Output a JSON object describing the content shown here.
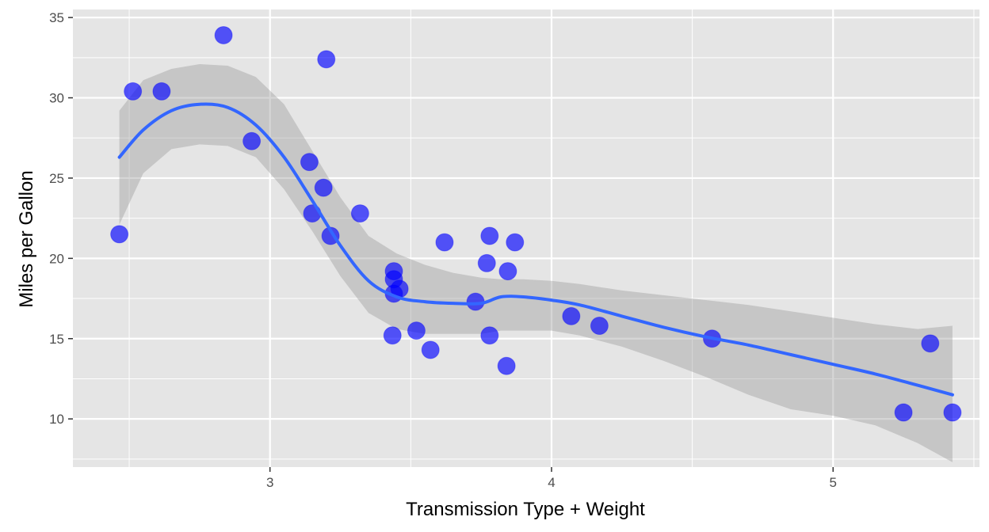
{
  "chart_data": {
    "type": "scatter",
    "xlabel": "Transmission Type + Weight",
    "ylabel": "Miles per Gallon",
    "xlim": [
      2.3,
      5.52
    ],
    "ylim": [
      7.0,
      35.5
    ],
    "x_ticks": [
      3,
      4,
      5
    ],
    "x_tick_labels": [
      "3",
      "4",
      "5"
    ],
    "y_ticks": [
      10,
      15,
      20,
      25,
      30,
      35
    ],
    "y_tick_labels": [
      "10",
      "15",
      "20",
      "25",
      "30",
      "35"
    ],
    "grid": true,
    "legend": "none",
    "points": [
      {
        "x": 2.465,
        "y": 21.5
      },
      {
        "x": 2.513,
        "y": 30.4
      },
      {
        "x": 2.615,
        "y": 30.4
      },
      {
        "x": 2.835,
        "y": 33.9
      },
      {
        "x": 2.935,
        "y": 27.3
      },
      {
        "x": 3.14,
        "y": 26.0
      },
      {
        "x": 3.15,
        "y": 22.8
      },
      {
        "x": 3.19,
        "y": 24.4
      },
      {
        "x": 3.2,
        "y": 32.4
      },
      {
        "x": 3.215,
        "y": 21.4
      },
      {
        "x": 3.32,
        "y": 22.8
      },
      {
        "x": 3.435,
        "y": 15.2
      },
      {
        "x": 3.44,
        "y": 19.2
      },
      {
        "x": 3.44,
        "y": 18.7
      },
      {
        "x": 3.44,
        "y": 17.8
      },
      {
        "x": 3.46,
        "y": 18.1
      },
      {
        "x": 3.52,
        "y": 15.5
      },
      {
        "x": 3.57,
        "y": 14.3
      },
      {
        "x": 3.62,
        "y": 21.0
      },
      {
        "x": 3.73,
        "y": 17.3
      },
      {
        "x": 3.77,
        "y": 19.7
      },
      {
        "x": 3.78,
        "y": 21.4
      },
      {
        "x": 3.78,
        "y": 15.2
      },
      {
        "x": 3.84,
        "y": 13.3
      },
      {
        "x": 3.845,
        "y": 19.2
      },
      {
        "x": 3.87,
        "y": 21.0
      },
      {
        "x": 4.07,
        "y": 16.4
      },
      {
        "x": 4.17,
        "y": 15.8
      },
      {
        "x": 4.57,
        "y": 15.0
      },
      {
        "x": 5.25,
        "y": 10.4
      },
      {
        "x": 5.345,
        "y": 14.7
      },
      {
        "x": 5.424,
        "y": 10.4
      }
    ],
    "smooth": {
      "x": [
        2.465,
        2.55,
        2.65,
        2.75,
        2.85,
        2.95,
        3.05,
        3.15,
        3.25,
        3.35,
        3.45,
        3.55,
        3.65,
        3.75,
        3.82,
        3.9,
        4.0,
        4.1,
        4.25,
        4.4,
        4.55,
        4.7,
        4.85,
        5.0,
        5.15,
        5.3,
        5.424
      ],
      "y": [
        26.3,
        28.0,
        29.2,
        29.6,
        29.4,
        28.3,
        26.3,
        23.6,
        20.8,
        18.6,
        17.6,
        17.3,
        17.2,
        17.2,
        17.6,
        17.6,
        17.4,
        17.1,
        16.4,
        15.7,
        15.1,
        14.6,
        14.0,
        13.4,
        12.8,
        12.1,
        11.5
      ],
      "upper": [
        29.2,
        31.1,
        31.8,
        32.1,
        32.0,
        31.3,
        29.6,
        26.7,
        23.8,
        21.4,
        20.3,
        19.6,
        19.1,
        18.8,
        18.7,
        18.7,
        18.6,
        18.4,
        18.0,
        17.7,
        17.4,
        17.1,
        16.7,
        16.3,
        15.9,
        15.6,
        15.8
      ],
      "lower": [
        22.1,
        25.3,
        26.8,
        27.1,
        27.0,
        26.3,
        24.3,
        21.7,
        18.9,
        16.6,
        15.6,
        15.3,
        15.3,
        15.3,
        15.5,
        15.5,
        15.5,
        15.2,
        14.5,
        13.6,
        12.6,
        11.5,
        10.6,
        10.2,
        9.6,
        8.5,
        7.3
      ]
    },
    "colors": {
      "panel_bg": "#e5e5e5",
      "grid": "#ffffff",
      "point_fill": "#0000ff",
      "point_opacity": 0.65,
      "line": "#3366ff",
      "ribbon": "#999999",
      "ribbon_opacity": 0.4
    }
  }
}
